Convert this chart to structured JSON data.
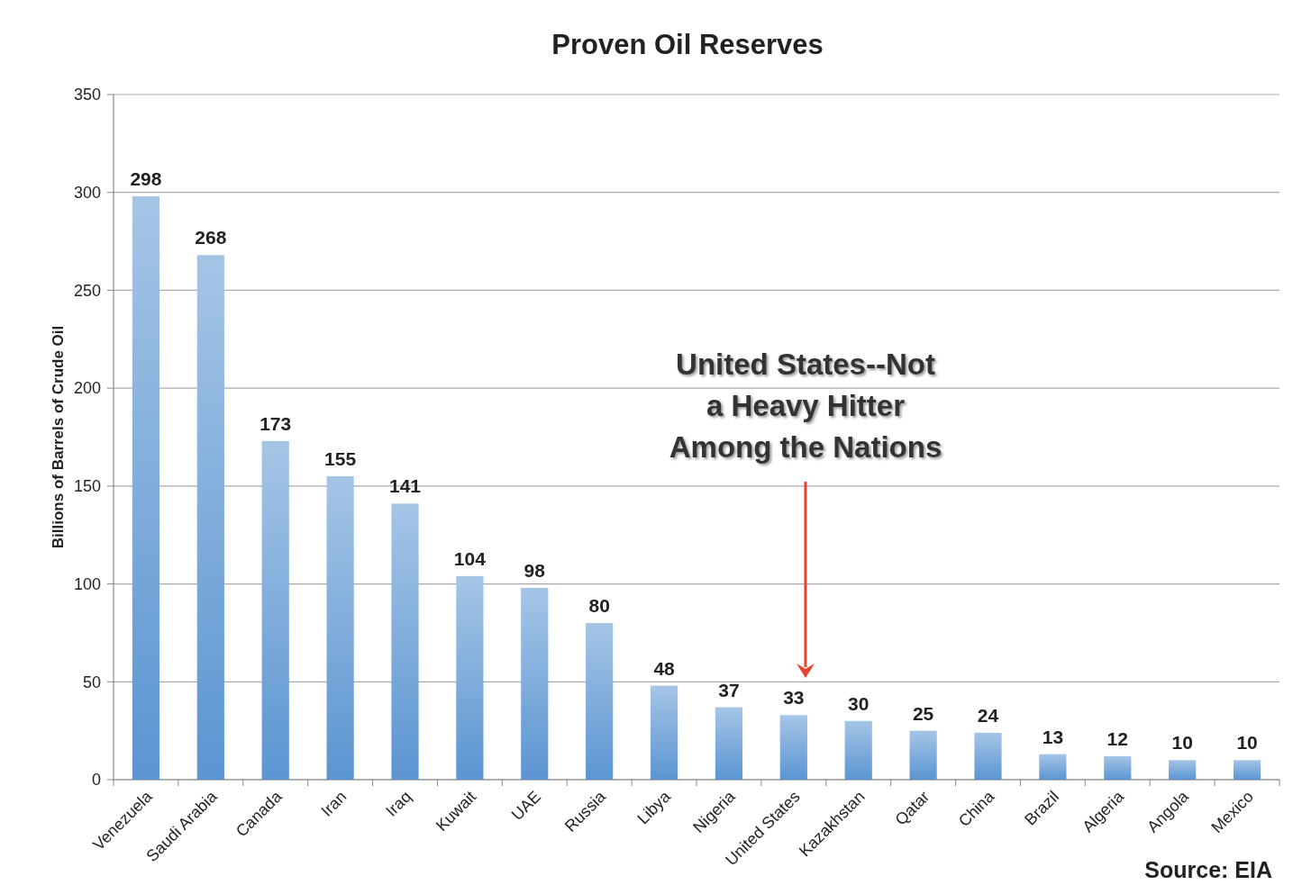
{
  "chart_data": {
    "type": "bar",
    "title": "Proven Oil Reserves",
    "ylabel": "Billions of Barrels of Crude Oil",
    "categories": [
      "Venezuela",
      "Saudi Arabia",
      "Canada",
      "Iran",
      "Iraq",
      "Kuwait",
      "UAE",
      "Russia",
      "Libya",
      "Nigeria",
      "United States",
      "Kazakhstan",
      "Qatar",
      "China",
      "Brazil",
      "Algeria",
      "Angola",
      "Mexico"
    ],
    "values": [
      298,
      268,
      173,
      155,
      141,
      104,
      98,
      80,
      48,
      37,
      33,
      30,
      25,
      24,
      13,
      12,
      10,
      10
    ],
    "color": "#5b95d2",
    "ylim": [
      0,
      350
    ],
    "yticks": [
      0,
      50,
      100,
      150,
      200,
      250,
      300,
      350
    ],
    "grid": "y",
    "data_labels": true,
    "annotations": [
      "United States--Not a Heavy Hitter Among the Nations",
      "Source:  EIA"
    ]
  }
}
